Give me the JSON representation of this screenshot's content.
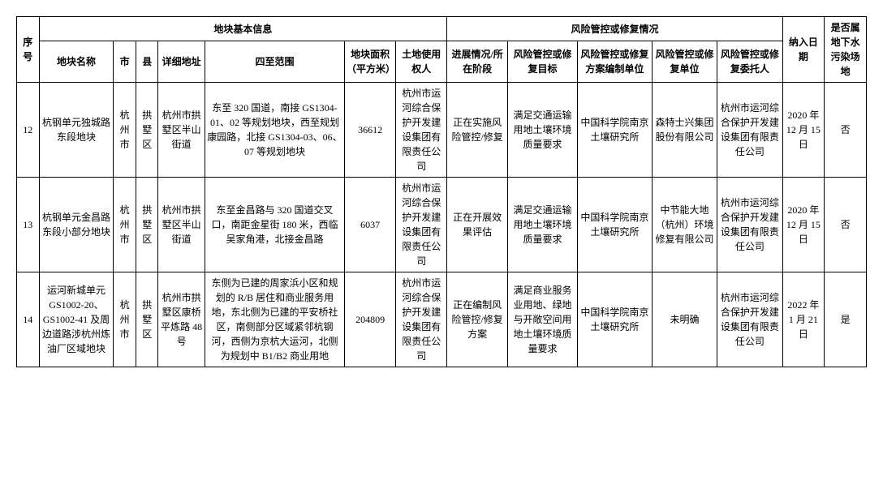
{
  "headers": {
    "seq": "序号",
    "basic_info": "地块基本信息",
    "name": "地块名称",
    "city": "市",
    "county": "县",
    "addr": "详细地址",
    "scope": "四至范围",
    "area": "地块面积（平方米）",
    "user": "土地使用权人",
    "risk_info": "风险管控或修复情况",
    "stage": "进展情况/所在阶段",
    "goal": "风险管控或修复目标",
    "plan_unit": "风险管控或修复方案编制单位",
    "fix_unit": "风险管控或修复单位",
    "owner": "风险管控或修复委托人",
    "date": "纳入日期",
    "gw": "是否属地下水污染场地"
  },
  "rows": [
    {
      "seq": "12",
      "name": "杭钢单元独城路东段地块",
      "city": "杭州市",
      "county": "拱墅区",
      "addr": "杭州市拱墅区半山街道",
      "scope": "东至 320 国道，南接 GS1304-01、02 等规划地块，西至规划康园路，北接 GS1304-03、06、07 等规划地块",
      "area": "36612",
      "user": "杭州市运河综合保护开发建设集团有限责任公司",
      "stage": "正在实施风险管控/修复",
      "goal": "满足交通运输用地土壤环境质量要求",
      "plan_unit": "中国科学院南京土壤研究所",
      "fix_unit": "森特士兴集团股份有限公司",
      "owner": "杭州市运河综合保护开发建设集团有限责任公司",
      "date": "2020 年 12 月 15 日",
      "gw": "否"
    },
    {
      "seq": "13",
      "name": "杭钢单元金昌路东段小部分地块",
      "city": "杭州市",
      "county": "拱墅区",
      "addr": "杭州市拱墅区半山街道",
      "scope": "东至金昌路与 320 国道交叉口，南距金星街 180 米，西临吴家角港，北接金昌路",
      "area": "6037",
      "user": "杭州市运河综合保护开发建设集团有限责任公司",
      "stage": "正在开展效果评估",
      "goal": "满足交通运输用地土壤环境质量要求",
      "plan_unit": "中国科学院南京土壤研究所",
      "fix_unit": "中节能大地（杭州）环境修复有限公司",
      "owner": "杭州市运河综合保护开发建设集团有限责任公司",
      "date": "2020 年 12 月 15 日",
      "gw": "否"
    },
    {
      "seq": "14",
      "name": "运河新城单元 GS1002-20、GS1002-41 及周边道路涉杭州炼油厂区域地块",
      "city": "杭州市",
      "county": "拱墅区",
      "addr": "杭州市拱墅区康桥平炼路 48 号",
      "scope": "东侧为已建的周家浜小区和规划的 R/B 居住和商业服务用地，东北侧为已建的平安桥社区，南侧部分区域紧邻杭钢河，西侧为京杭大运河，北侧为规划中 B1/B2 商业用地",
      "area": "204809",
      "user": "杭州市运河综合保护开发建设集团有限责任公司",
      "stage": "正在编制风险管控/修复方案",
      "goal": "满足商业服务业用地、绿地与开敞空间用地土壤环境质量要求",
      "plan_unit": "中国科学院南京土壤研究所",
      "fix_unit": "未明确",
      "owner": "杭州市运河综合保护开发建设集团有限责任公司",
      "date": "2022 年 1 月 21 日",
      "gw": "是"
    }
  ]
}
